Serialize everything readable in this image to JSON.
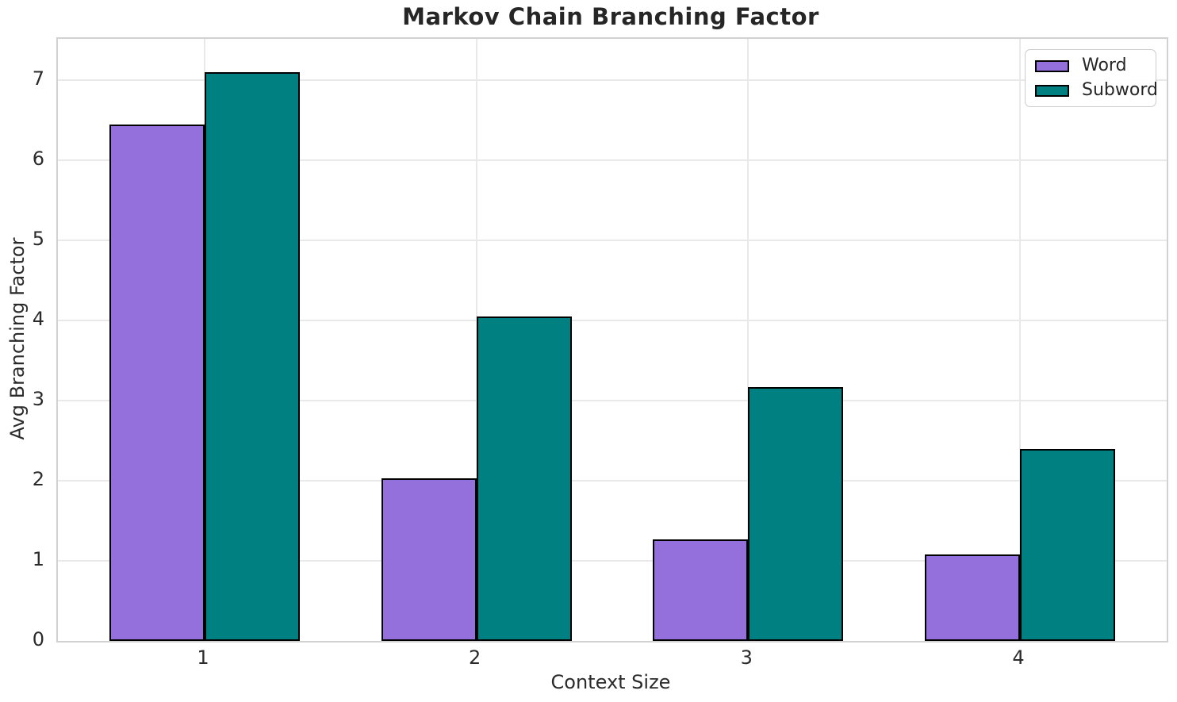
{
  "chart_data": {
    "type": "bar",
    "title": "Markov Chain Branching Factor",
    "xlabel": "Context Size",
    "ylabel": "Avg Branching Factor",
    "categories": [
      "1",
      "2",
      "3",
      "4"
    ],
    "series": [
      {
        "name": "Word",
        "color": "#9370DB",
        "values": [
          6.45,
          2.03,
          1.27,
          1.08
        ]
      },
      {
        "name": "Subword",
        "color": "#008080",
        "values": [
          7.1,
          4.05,
          3.17,
          2.4
        ]
      }
    ],
    "bar_edge_color": "#000000",
    "bar_width_data_units": 0.35,
    "xlim": [
      0.46,
      4.54
    ],
    "ylim": [
      0,
      7.52
    ],
    "yticks": [
      0,
      1,
      2,
      3,
      4,
      5,
      6,
      7
    ],
    "grid": true,
    "legend": {
      "position": "upper right",
      "entries": [
        "Word",
        "Subword"
      ]
    },
    "colors": {
      "gridline": "#e9e9e9",
      "spine": "#d2d2d2",
      "text": "#2b2b2b"
    }
  }
}
